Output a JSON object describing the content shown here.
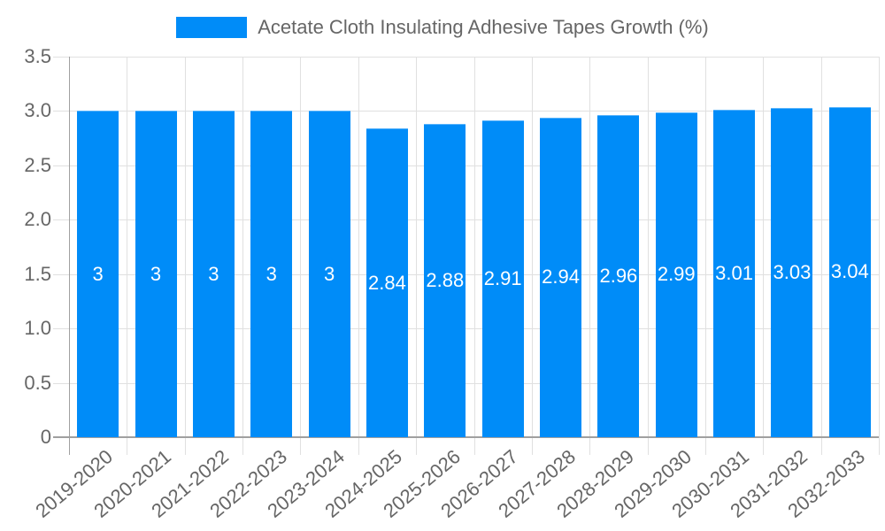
{
  "legend": {
    "label": "Acetate Cloth Insulating Adhesive Tapes Growth (%)",
    "color": "#008cf8"
  },
  "chart_data": {
    "type": "bar",
    "title": "",
    "xlabel": "",
    "ylabel": "",
    "ylim": [
      0,
      3.5
    ],
    "yticks": [
      "0",
      "0.5",
      "1.0",
      "1.5",
      "2.0",
      "2.5",
      "3.0",
      "3.5"
    ],
    "grid": true,
    "legend_position": "top",
    "categories": [
      "2019-2020",
      "2020-2021",
      "2021-2022",
      "2022-2023",
      "2023-2024",
      "2024-2025",
      "2025-2026",
      "2026-2027",
      "2027-2028",
      "2028-2029",
      "2029-2030",
      "2030-2031",
      "2031-2032",
      "2032-2033"
    ],
    "series": [
      {
        "name": "Acetate Cloth Insulating Adhesive Tapes Growth (%)",
        "color": "#008cf8",
        "values": [
          3,
          3,
          3,
          3,
          3,
          2.84,
          2.88,
          2.91,
          2.94,
          2.96,
          2.99,
          3.01,
          3.03,
          3.04
        ],
        "labels": [
          "3",
          "3",
          "3",
          "3",
          "3",
          "2.84",
          "2.88",
          "2.91",
          "2.94",
          "2.96",
          "2.99",
          "3.01",
          "3.03",
          "3.04"
        ]
      }
    ]
  }
}
